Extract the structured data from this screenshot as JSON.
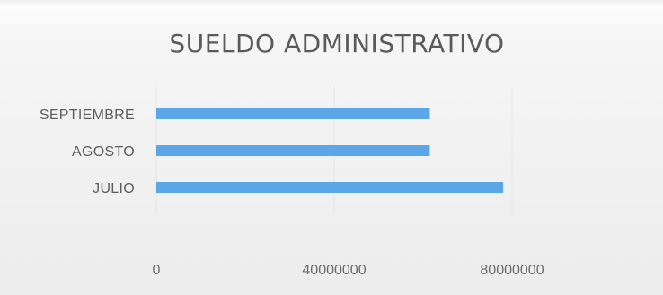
{
  "chart_data": {
    "type": "bar",
    "orientation": "horizontal",
    "title": "SUELDO ADMINISTRATIVO",
    "categories": [
      "JULIO",
      "AGOSTO",
      "SEPTIEMBRE"
    ],
    "values": [
      78000000,
      61500000,
      61500000
    ],
    "xlim": [
      0,
      80000000
    ],
    "xticks": [
      "0",
      "40000000",
      "80000000"
    ],
    "grid": true,
    "legend": "none",
    "bar_color": "#5aa6e6"
  }
}
